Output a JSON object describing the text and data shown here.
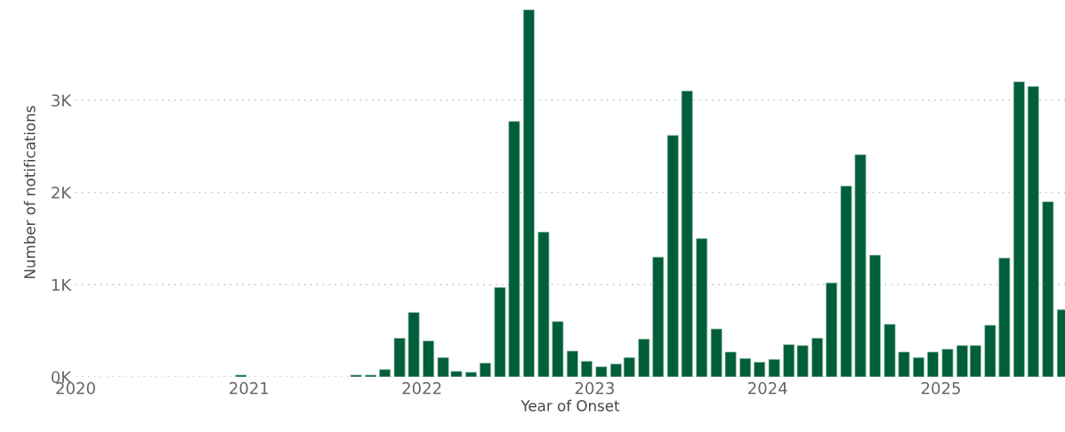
{
  "chart_data": {
    "type": "bar",
    "xlabel": "Year of Onset",
    "ylabel": "Number of notifications",
    "x": [
      "2020-12-15",
      "2021-08-15",
      "2021-09-15",
      "2021-10-15",
      "2021-11-15",
      "2021-12-15",
      "2022-01-15",
      "2022-02-15",
      "2022-03-15",
      "2022-04-15",
      "2022-05-15",
      "2022-06-15",
      "2022-07-15",
      "2022-08-15",
      "2022-09-15",
      "2022-10-15",
      "2022-11-15",
      "2022-12-15",
      "2023-01-15",
      "2023-02-15",
      "2023-03-15",
      "2023-04-15",
      "2023-05-15",
      "2023-06-15",
      "2023-07-15",
      "2023-08-15",
      "2023-09-15",
      "2023-10-15",
      "2023-11-15",
      "2023-12-15",
      "2024-01-15",
      "2024-02-15",
      "2024-03-15",
      "2024-04-15",
      "2024-05-15",
      "2024-06-15",
      "2024-07-15",
      "2024-08-15",
      "2024-09-15",
      "2024-10-15",
      "2024-11-15",
      "2024-12-15",
      "2025-01-15",
      "2025-02-15",
      "2025-03-15",
      "2025-04-15",
      "2025-05-15",
      "2025-06-15",
      "2025-07-15",
      "2025-08-15",
      "2025-09-15"
    ],
    "values": [
      20,
      20,
      20,
      80,
      420,
      700,
      390,
      210,
      60,
      50,
      150,
      970,
      2770,
      3980,
      1570,
      600,
      280,
      170,
      110,
      140,
      210,
      410,
      1300,
      2620,
      3100,
      1500,
      520,
      270,
      200,
      160,
      190,
      350,
      340,
      420,
      1020,
      2070,
      2410,
      1320,
      570,
      270,
      210,
      270,
      300,
      340,
      340,
      560,
      1290,
      3200,
      3150,
      1900,
      730
    ],
    "color": "#005e3a",
    "xlim": [
      "2020-01-01",
      "2025-09-20"
    ],
    "xticks": [
      {
        "value": "2020-01-01",
        "label": "2020"
      },
      {
        "value": "2021-01-01",
        "label": "2021"
      },
      {
        "value": "2022-01-01",
        "label": "2022"
      },
      {
        "value": "2023-01-01",
        "label": "2023"
      },
      {
        "value": "2024-01-01",
        "label": "2024"
      },
      {
        "value": "2025-01-01",
        "label": "2025"
      }
    ],
    "ylim": [
      0,
      4000
    ],
    "yticks": [
      {
        "value": 0,
        "label": "0K"
      },
      {
        "value": 1000,
        "label": "1K"
      },
      {
        "value": 2000,
        "label": "2K"
      },
      {
        "value": 3000,
        "label": "3K"
      }
    ],
    "grid": "y"
  }
}
